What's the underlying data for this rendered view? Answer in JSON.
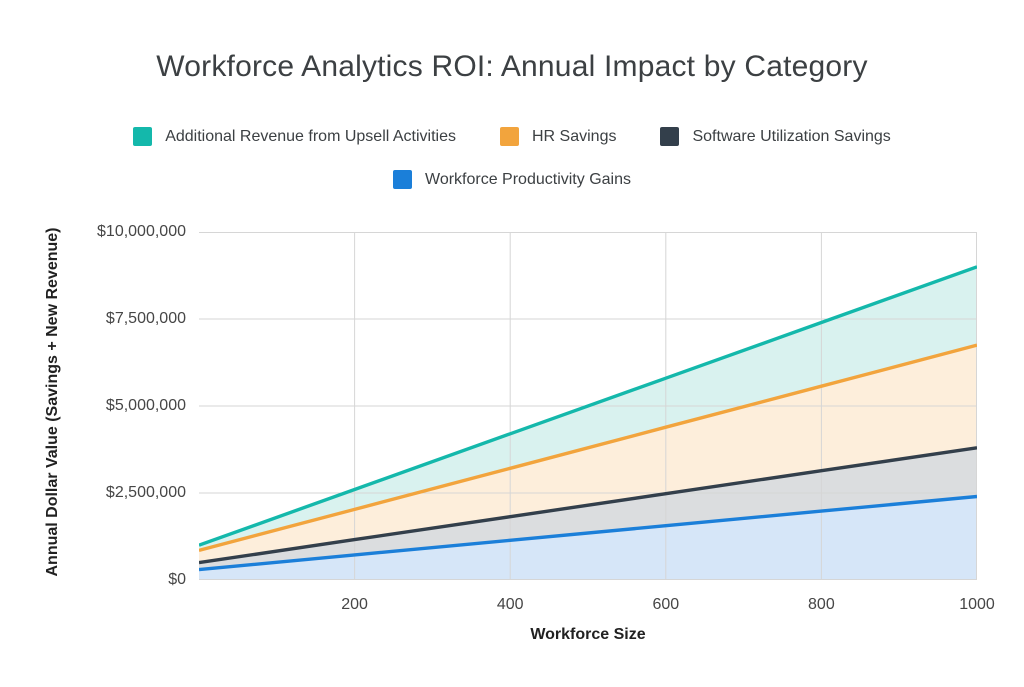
{
  "chart_data": {
    "type": "area",
    "title": "Workforce Analytics ROI: Annual Impact by Category",
    "xlabel": "Workforce Size",
    "ylabel": "Annual Dollar Value (Savings + New Revenue)",
    "xlim": [
      0,
      1000
    ],
    "ylim": [
      0,
      10000000
    ],
    "grid": true,
    "legend_position": "top",
    "gridline_color": "#d6d6d6",
    "x": [
      0,
      200,
      400,
      600,
      800,
      1000
    ],
    "x_ticks": [
      {
        "label": "200",
        "value": 200
      },
      {
        "label": "400",
        "value": 400
      },
      {
        "label": "600",
        "value": 600
      },
      {
        "label": "800",
        "value": 800
      },
      {
        "label": "1000",
        "value": 1000
      }
    ],
    "y_ticks": [
      {
        "label": "$0",
        "value": 0
      },
      {
        "label": "$2,500,000",
        "value": 2500000
      },
      {
        "label": "$5,000,000",
        "value": 5000000
      },
      {
        "label": "$7,500,000",
        "value": 7500000
      },
      {
        "label": "$10,000,000",
        "value": 10000000
      }
    ],
    "series": [
      {
        "name": "Additional Revenue from Upsell Activities",
        "color": "#14b8ab",
        "fill": "#d9f2ef",
        "values": [
          1000000,
          2600000,
          4200000,
          5800000,
          7400000,
          9000000
        ]
      },
      {
        "name": "HR Savings",
        "color": "#f2a43d",
        "fill": "#fdeedb",
        "values": [
          850000,
          2030000,
          3210000,
          4390000,
          5570000,
          6750000
        ]
      },
      {
        "name": "Software Utilization Savings",
        "color": "#333f4b",
        "fill": "#dbdddf",
        "values": [
          500000,
          1160000,
          1820000,
          2480000,
          3140000,
          3800000
        ]
      },
      {
        "name": "Workforce Productivity Gains",
        "color": "#1b7fd9",
        "fill": "#d6e6f8",
        "values": [
          300000,
          720000,
          1140000,
          1560000,
          1980000,
          2400000
        ]
      }
    ]
  }
}
